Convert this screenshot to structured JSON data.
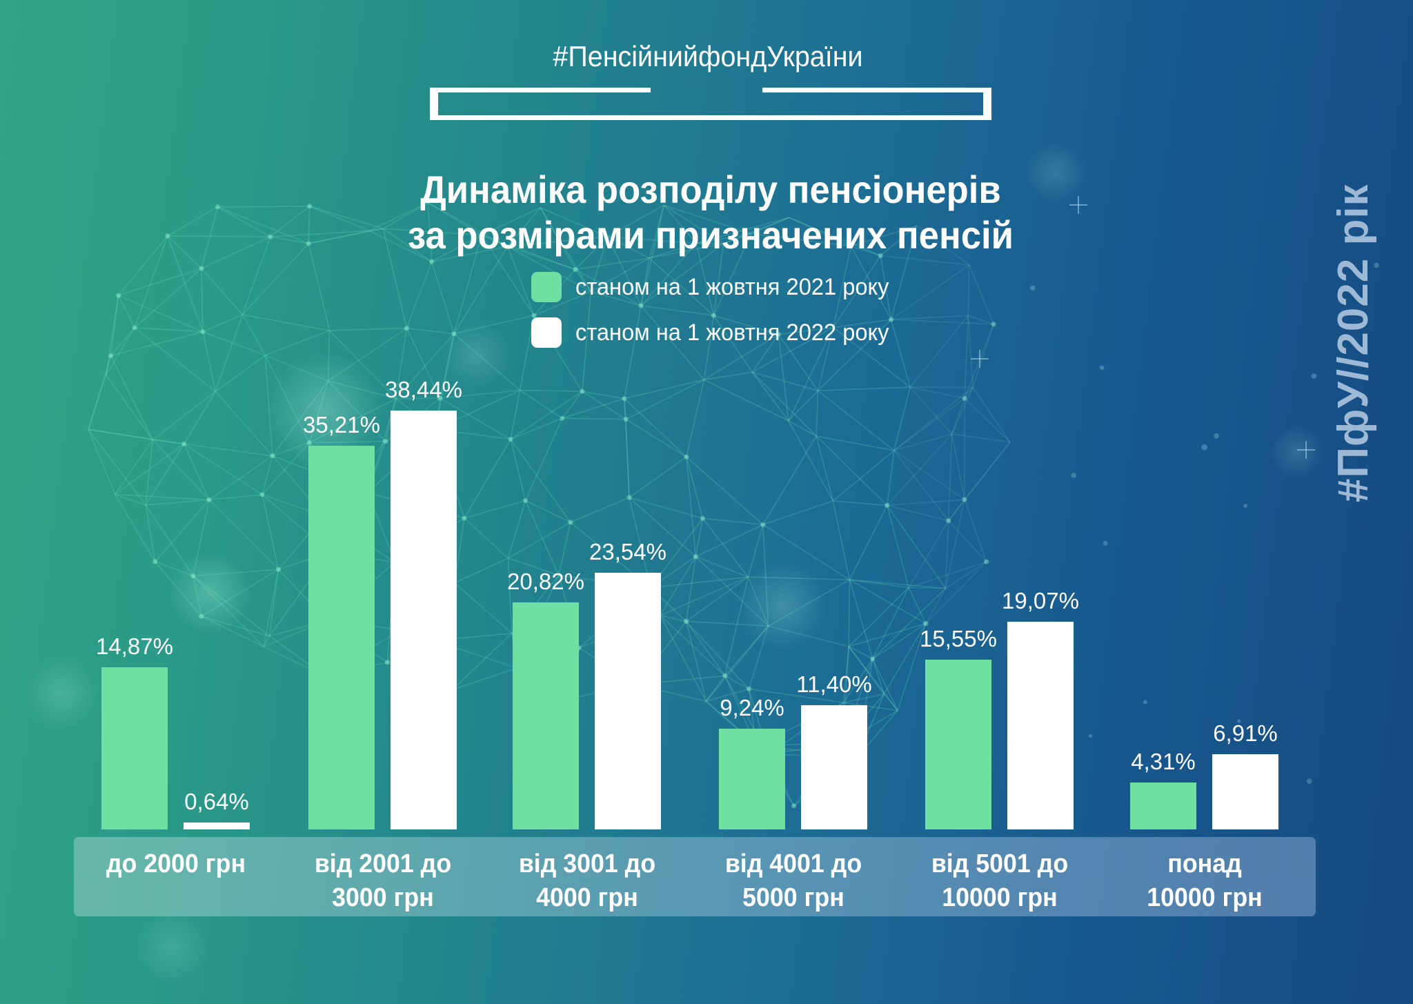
{
  "page": {
    "hashtag": "#ПенсійнийфондУкраїни",
    "vertical_tag": "#ПфУ//2022 рік"
  },
  "title": {
    "line1": "Динаміка розподілу пенсіонерів",
    "line2": "за розмірами призначених пенсій"
  },
  "legend": {
    "items": [
      {
        "label": "станом на 1 жовтня 2021 року",
        "color": "#6fdfa2"
      },
      {
        "label": "станом на 1 жовтня 2022 року",
        "color": "#ffffff"
      }
    ]
  },
  "chart_data": {
    "type": "bar",
    "title": "Динаміка розподілу пенсіонерів за розмірами призначених пенсій",
    "unit": "%",
    "ylim": [
      0,
      40
    ],
    "grid": false,
    "legend_position": "top",
    "categories": [
      "до 2000 грн",
      "від 2001 до 3000 грн",
      "від 3001 до 4000 грн",
      "від 4001 до 5000 грн",
      "від 5001 до 10000 грн",
      "понад 10000 грн"
    ],
    "category_lines": [
      [
        "до 2000 грн"
      ],
      [
        "від 2001 до",
        "3000 грн"
      ],
      [
        "від 3001 до",
        "4000 грн"
      ],
      [
        "від 4001 до",
        "5000 грн"
      ],
      [
        "від 5001 до",
        "10000 грн"
      ],
      [
        "понад",
        "10000 грн"
      ]
    ],
    "series": [
      {
        "name": "станом на 1 жовтня 2021 року",
        "color": "#6fdfa2",
        "values": [
          14.87,
          35.21,
          20.82,
          9.24,
          15.55,
          4.31
        ],
        "labels": [
          "14,87%",
          "35,21%",
          "20,82%",
          "9,24%",
          "15,55%",
          "4,31%"
        ]
      },
      {
        "name": "станом на 1 жовтня 2022 року",
        "color": "#ffffff",
        "values": [
          0.64,
          38.44,
          23.54,
          11.4,
          19.07,
          6.91
        ],
        "labels": [
          "0,64%",
          "38,44%",
          "23,54%",
          "11,40%",
          "19,07%",
          "6,91%"
        ]
      }
    ]
  }
}
